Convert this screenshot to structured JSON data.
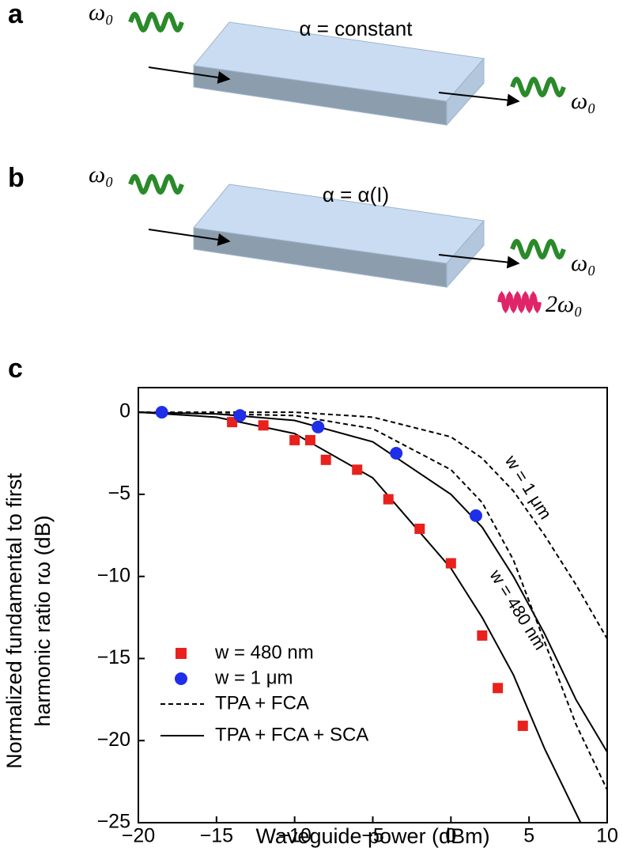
{
  "panels": {
    "a": "a",
    "b": "b",
    "c": "c"
  },
  "diagrams": [
    {
      "annotation": "α = constant",
      "input": "ω₀",
      "outputs": [
        "ω₀"
      ]
    },
    {
      "annotation": "α = α(I)",
      "input": "ω₀",
      "outputs": [
        "ω₀",
        "2ω₀"
      ]
    }
  ],
  "chart_data": {
    "type": "scatter-line",
    "x_label": "Waveguide power (dBm)",
    "y_label": [
      "Normalized fundamental to first",
      "harmonic ratio rω (dB)"
    ],
    "xlim": [
      -20,
      10
    ],
    "ylim": [
      -25,
      1.5
    ],
    "xticks": [
      {
        "value": -20,
        "label": "−20"
      },
      {
        "value": -15,
        "label": "−15"
      },
      {
        "value": -10,
        "label": "−10"
      },
      {
        "value": -5,
        "label": "−5"
      },
      0,
      5,
      10
    ],
    "yticks": [
      0,
      {
        "value": -5,
        "label": "−5"
      },
      {
        "value": -10,
        "label": "−10"
      },
      {
        "value": -15,
        "label": "−15"
      },
      {
        "value": -20,
        "label": "−20"
      },
      {
        "value": -25,
        "label": "−25"
      }
    ],
    "points": [
      {
        "name": "w = 480 nm",
        "color": "#e8211d",
        "marker": "square",
        "x": [
          -14,
          -12,
          -10,
          -9,
          -8,
          -6,
          -4,
          -2,
          0,
          2,
          3,
          4.6
        ],
        "values": [
          -0.6,
          -0.8,
          -1.7,
          -1.7,
          -2.9,
          -3.5,
          -5.3,
          -7.1,
          -9.2,
          -13.6,
          -16.8,
          -19.1
        ]
      },
      {
        "name": "w = 1 μm",
        "color": "#1f2ee8",
        "marker": "circle",
        "x": [
          -18.5,
          -13.5,
          -8.5,
          -3.5,
          1.6
        ],
        "values": [
          0,
          -0.2,
          -0.9,
          -2.5,
          -6.3
        ]
      }
    ],
    "lines": [
      {
        "name": "TPA + FCA",
        "dash": true,
        "color": "#000000",
        "curves": [
          {
            "label": "w = 1 μm",
            "x": [
              -20,
              -10,
              -5,
              0,
              2,
              4,
              6,
              8,
              10
            ],
            "values": [
              0,
              0,
              -0.3,
              -1.5,
              -2.8,
              -4.8,
              -7.5,
              -10.5,
              -13.8
            ]
          },
          {
            "label": "w = 480 nm",
            "x": [
              -20,
              -10,
              -5,
              0,
              2,
              4,
              6,
              8,
              10
            ],
            "values": [
              0,
              -0.2,
              -1,
              -3.5,
              -5.5,
              -9,
              -14,
              -19,
              -23
            ]
          }
        ]
      },
      {
        "name": "TPA + FCA + SCA",
        "dash": false,
        "color": "#000000",
        "curves": [
          {
            "x": [
              -20,
              -15,
              -10,
              -5,
              0,
              2,
              4,
              6,
              8.3
            ],
            "values": [
              0,
              -0.3,
              -1.3,
              -4,
              -9.5,
              -12.5,
              -16,
              -20.5,
              -25
            ]
          },
          {
            "x": [
              -20,
              -15,
              -10,
              -5,
              0,
              2,
              4,
              6,
              8,
              10
            ],
            "values": [
              0,
              -0.1,
              -0.5,
              -1.8,
              -5,
              -7,
              -10,
              -13.5,
              -17.5,
              -20.7
            ]
          }
        ]
      }
    ]
  }
}
